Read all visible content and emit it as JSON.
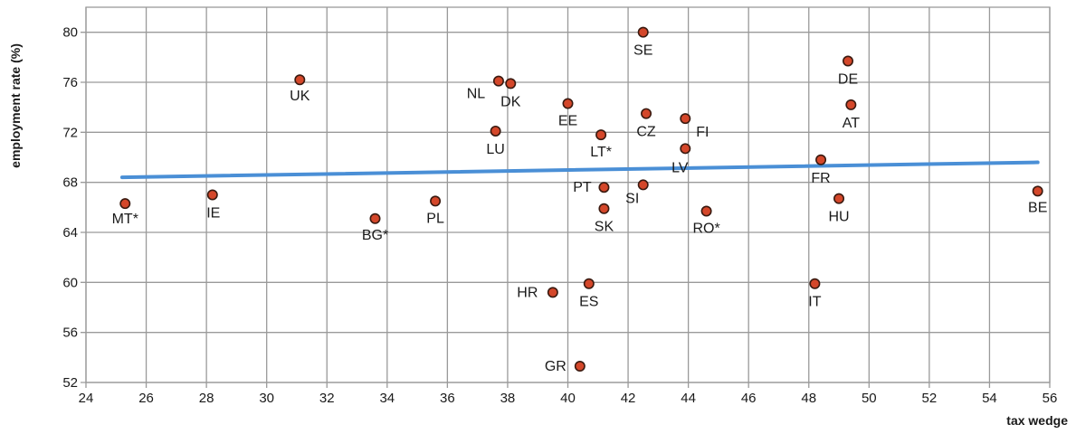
{
  "chart_data": {
    "type": "scatter",
    "xlabel": "tax wedge",
    "ylabel": "employment rate (%)",
    "xlim": [
      24,
      56
    ],
    "ylim": [
      52,
      82
    ],
    "x_ticks": [
      "24",
      "26",
      "28",
      "30",
      "32",
      "34",
      "36",
      "38",
      "40",
      "42",
      "44",
      "46",
      "48",
      "50",
      "52",
      "54",
      "56"
    ],
    "y_ticks": [
      "52",
      "56",
      "60",
      "64",
      "68",
      "72",
      "76",
      "80"
    ],
    "grid": true,
    "legend": "none",
    "colors": {
      "point_fill": "#d4472a",
      "point_stroke": "#3a1a10",
      "trend_line": "#4a8fd6",
      "grid": "#9a9a9a"
    },
    "points": [
      {
        "label": "MT*",
        "x": 25.3,
        "y": 66.3
      },
      {
        "label": "IE",
        "x": 28.2,
        "y": 67.0
      },
      {
        "label": "UK",
        "x": 31.1,
        "y": 76.2
      },
      {
        "label": "BG*",
        "x": 33.6,
        "y": 65.1
      },
      {
        "label": "PL",
        "x": 35.6,
        "y": 66.5
      },
      {
        "label": "LU",
        "x": 37.6,
        "y": 72.1
      },
      {
        "label": "NL",
        "x": 37.7,
        "y": 76.1
      },
      {
        "label": "DK",
        "x": 38.1,
        "y": 75.9
      },
      {
        "label": "HR",
        "x": 39.5,
        "y": 59.2
      },
      {
        "label": "EE",
        "x": 40.0,
        "y": 74.3
      },
      {
        "label": "GR",
        "x": 40.4,
        "y": 53.3
      },
      {
        "label": "ES",
        "x": 40.7,
        "y": 59.9
      },
      {
        "label": "LT*",
        "x": 41.1,
        "y": 71.8
      },
      {
        "label": "PT",
        "x": 41.2,
        "y": 67.6
      },
      {
        "label": "SK",
        "x": 41.2,
        "y": 65.9
      },
      {
        "label": "SE",
        "x": 42.5,
        "y": 80.0
      },
      {
        "label": "SI",
        "x": 42.5,
        "y": 67.8
      },
      {
        "label": "CZ",
        "x": 42.6,
        "y": 73.5
      },
      {
        "label": "FI",
        "x": 43.9,
        "y": 73.1
      },
      {
        "label": "LV",
        "x": 43.9,
        "y": 70.7
      },
      {
        "label": "RO*",
        "x": 44.6,
        "y": 65.7
      },
      {
        "label": "IT",
        "x": 48.2,
        "y": 59.9
      },
      {
        "label": "FR",
        "x": 48.4,
        "y": 69.8
      },
      {
        "label": "HU",
        "x": 49.0,
        "y": 66.7
      },
      {
        "label": "DE",
        "x": 49.3,
        "y": 77.7
      },
      {
        "label": "AT",
        "x": 49.4,
        "y": 74.2
      },
      {
        "label": "BE",
        "x": 55.6,
        "y": 67.3
      }
    ],
    "trend_line": {
      "x": [
        25.2,
        55.6
      ],
      "y": [
        68.4,
        69.6
      ]
    }
  }
}
